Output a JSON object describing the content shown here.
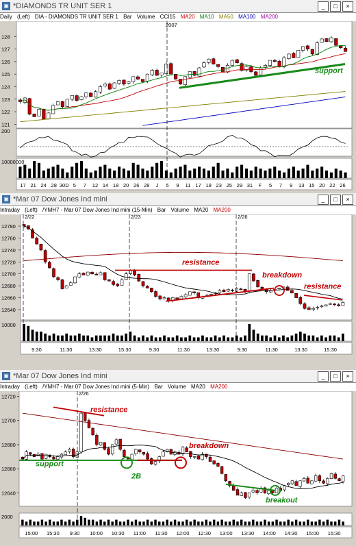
{
  "windows": [
    {
      "title": "*DIAMONDS TR UNIT SER 1",
      "info": {
        "interval": "Daily",
        "axis": "(Left)",
        "symbol": "DIA - DIAMONDS TR UNIT SER 1",
        "type": "Bar",
        "volume": "Volume",
        "cci": "CCI15",
        "ma": [
          "MA20",
          "MA10",
          "MA50",
          "MA100",
          "MA200"
        ]
      },
      "year_label": "2007"
    },
    {
      "title": "*Mar 07  Dow Jones Ind mini",
      "info": {
        "interval": "Intraday",
        "axis": "(Left)",
        "symbol": "/YMH7 - Mar 07  Dow Jones Ind mini (15-Min)",
        "type": "Bar",
        "volume": "Volume",
        "ma": [
          "MA20",
          "MA200"
        ]
      }
    },
    {
      "title": "*Mar 07  Dow Jones Ind mini",
      "info": {
        "interval": "Intraday",
        "axis": "(Left)",
        "symbol": "/YMH7 - Mar 07  Dow Jones Ind mini (5-Min)",
        "type": "Bar",
        "volume": "Volume",
        "ma": [
          "MA20",
          "MA200"
        ]
      }
    }
  ],
  "window_buttons": [
    "_",
    "□",
    "×"
  ],
  "colors": {
    "ma20": "#c00000",
    "ma10": "#008000",
    "ma50": "#808000",
    "ma100": "#0000c0",
    "ma200": "#a000a0",
    "annot_red": "#c00000",
    "annot_green": "#1a8a1a",
    "up": "#ffffff",
    "down": "#c00000"
  },
  "chart_data": [
    {
      "type": "candlestick",
      "title": "DIA - DIAMONDS TR UNIT SER 1",
      "ylim": [
        120.8,
        129
      ],
      "y_ticks": [
        121,
        122,
        123,
        124,
        125,
        126,
        127,
        128
      ],
      "x_ticks": [
        "17",
        "21",
        "24",
        "28",
        "30D",
        "5",
        "7",
        "12",
        "14",
        "18",
        "20",
        "26",
        "28",
        "J",
        "5",
        "9",
        "11",
        "17",
        "19",
        "23",
        "25",
        "29",
        "31",
        "F",
        "5",
        "7",
        "9",
        "13",
        "15",
        "20",
        "22",
        "26"
      ],
      "date_divider": "2007",
      "closes": [
        122.8,
        123.1,
        121.8,
        121.6,
        122.2,
        121.4,
        121.9,
        122.5,
        122.8,
        122.4,
        123.0,
        123.3,
        122.9,
        123.2,
        123.5,
        123.2,
        123.6,
        124.0,
        124.2,
        123.8,
        124.3,
        124.5,
        124.2,
        124.4,
        124.8,
        124.6,
        124.4,
        125.0,
        125.3,
        124.9,
        125.1,
        125.8,
        125.0,
        124.6,
        124.2,
        124.8,
        125.2,
        124.9,
        125.5,
        125.9,
        126.2,
        125.8,
        125.6,
        125.2,
        125.7,
        126.1,
        125.9,
        125.3,
        125.6,
        125.2,
        124.9,
        125.5,
        125.7,
        126.1,
        126.0,
        125.6,
        126.3,
        126.6,
        126.3,
        126.9,
        127.2,
        127.0,
        126.6,
        127.5,
        127.8,
        127.6,
        127.9,
        127.3,
        127.1,
        126.8
      ],
      "cci": {
        "levels": [
          200,
          0
        ],
        "label": "200"
      },
      "volume_label": "10000000",
      "volume": [
        6,
        7,
        5,
        9,
        8,
        4,
        5,
        6,
        7,
        5,
        3,
        6,
        8,
        9,
        5,
        3,
        4,
        6,
        7,
        5,
        4,
        6,
        5,
        4,
        8,
        7,
        5,
        4,
        6,
        8,
        9,
        4,
        3,
        5,
        6,
        7,
        4,
        5,
        6,
        5,
        4,
        6,
        8,
        4,
        5,
        3,
        6,
        7,
        5,
        4,
        6,
        5,
        4,
        5,
        6,
        4,
        3,
        5,
        6,
        4,
        5,
        7,
        4,
        5,
        6,
        4,
        3,
        5,
        4,
        3
      ],
      "annotations": [
        {
          "text": "support",
          "color": "#1a8a1a"
        }
      ]
    },
    {
      "type": "candlestick",
      "title": "/YMH7 - Mar 07  Dow Jones Ind mini (15-Min)",
      "ylim": [
        12625,
        12795
      ],
      "y_ticks": [
        12640,
        12660,
        12680,
        12700,
        12720,
        12740,
        12760,
        12780
      ],
      "x_ticks": [
        "9:30",
        "11:30",
        "13:30",
        "15:30",
        "9:30",
        "11:30",
        "13:30",
        "9:30",
        "11:30",
        "13:30",
        "15:30"
      ],
      "date_labels": [
        "2/22",
        "2/23",
        "2/26"
      ],
      "closes": [
        12780,
        12775,
        12760,
        12750,
        12740,
        12720,
        12710,
        12695,
        12690,
        12675,
        12680,
        12685,
        12695,
        12700,
        12698,
        12703,
        12700,
        12698,
        12702,
        12690,
        12688,
        12682,
        12680,
        12690,
        12700,
        12706,
        12698,
        12688,
        12680,
        12676,
        12670,
        12662,
        12658,
        12660,
        12655,
        12660,
        12658,
        12662,
        12665,
        12670,
        12668,
        12660,
        12662,
        12664,
        12666,
        12668,
        12672,
        12670,
        12674,
        12672,
        12676,
        12674,
        12670,
        12700,
        12688,
        12678,
        12674,
        12670,
        12672,
        12674,
        12676,
        12678,
        12672,
        12668,
        12660,
        12650,
        12642,
        12640,
        12642,
        12644,
        12646,
        12648,
        12650,
        12648,
        12646,
        12652
      ],
      "volume_label": "10000",
      "volume": [
        9,
        8,
        6,
        5,
        5,
        4,
        3,
        4,
        3,
        3,
        4,
        3,
        3,
        4,
        3,
        3,
        2,
        3,
        3,
        3,
        3,
        4,
        3,
        3,
        4,
        5,
        3,
        2,
        3,
        2,
        3,
        2,
        2,
        3,
        2,
        2,
        3,
        2,
        2,
        3,
        2,
        2,
        3,
        2,
        2,
        3,
        2,
        3,
        2,
        2,
        3,
        2,
        3,
        9,
        6,
        4,
        3,
        3,
        2,
        3,
        2,
        3,
        2,
        3,
        4,
        5,
        4,
        3,
        3,
        2,
        3,
        2,
        3,
        3,
        2,
        4
      ],
      "annotations": [
        {
          "text": "resistance",
          "color": "#c00000"
        },
        {
          "text": "breakdown",
          "color": "#c00000"
        },
        {
          "text": "resistance",
          "color": "#c00000"
        }
      ]
    },
    {
      "type": "candlestick",
      "title": "/YMH7 - Mar 07  Dow Jones Ind mini (5-Min)",
      "ylim": [
        12630,
        12722
      ],
      "y_ticks": [
        12640,
        12660,
        12680,
        12700,
        12720
      ],
      "x_ticks": [
        "15:00",
        "15:30",
        "9:30",
        "10:00",
        "10:30",
        "11:00",
        "11:30",
        "12:00",
        "12:30",
        "13:00",
        "13:30",
        "14:00",
        "14:30",
        "15:00",
        "15:30"
      ],
      "date_labels": [
        "2/26"
      ],
      "closes": [
        12668,
        12674,
        12672,
        12670,
        12672,
        12668,
        12672,
        12670,
        12668,
        12670,
        12672,
        12674,
        12676,
        12670,
        12674,
        12706,
        12700,
        12694,
        12688,
        12680,
        12682,
        12676,
        12672,
        12680,
        12684,
        12676,
        12670,
        12668,
        12672,
        12676,
        12674,
        12672,
        12668,
        12664,
        12666,
        12670,
        12674,
        12676,
        12672,
        12674,
        12672,
        12678,
        12674,
        12670,
        12670,
        12668,
        12672,
        12670,
        12666,
        12664,
        12662,
        12656,
        12650,
        12646,
        12642,
        12638,
        12640,
        12636,
        12640,
        12642,
        12640,
        12644,
        12640,
        12642,
        12640,
        12644,
        12642,
        12646,
        12648,
        12650,
        12646,
        12650,
        12652,
        12648,
        12650,
        12654,
        12650,
        12648,
        12652,
        12656,
        12652,
        12650,
        12654
      ],
      "volume_label": "2000",
      "volume": [
        3,
        2,
        3,
        2,
        2,
        3,
        2,
        3,
        2,
        2,
        3,
        2,
        3,
        2,
        3,
        5,
        4,
        3,
        3,
        2,
        3,
        2,
        3,
        2,
        3,
        2,
        2,
        3,
        2,
        3,
        2,
        2,
        3,
        2,
        3,
        2,
        2,
        3,
        2,
        3,
        2,
        2,
        3,
        2,
        3,
        2,
        2,
        3,
        2,
        3,
        2,
        3,
        2,
        2,
        3,
        2,
        3,
        2,
        2,
        3,
        2,
        2,
        3,
        2,
        2,
        3,
        2,
        2,
        3,
        2,
        3,
        2,
        2,
        3,
        2,
        2,
        3,
        2,
        3,
        2,
        2,
        3,
        2
      ],
      "annotations": [
        {
          "text": "resistance",
          "color": "#c00000"
        },
        {
          "text": "breakdown",
          "color": "#c00000"
        },
        {
          "text": "support",
          "color": "#1a8a1a"
        },
        {
          "text": "2B",
          "color": "#1a8a1a"
        },
        {
          "text": "breakout",
          "color": "#1a8a1a"
        }
      ]
    }
  ]
}
